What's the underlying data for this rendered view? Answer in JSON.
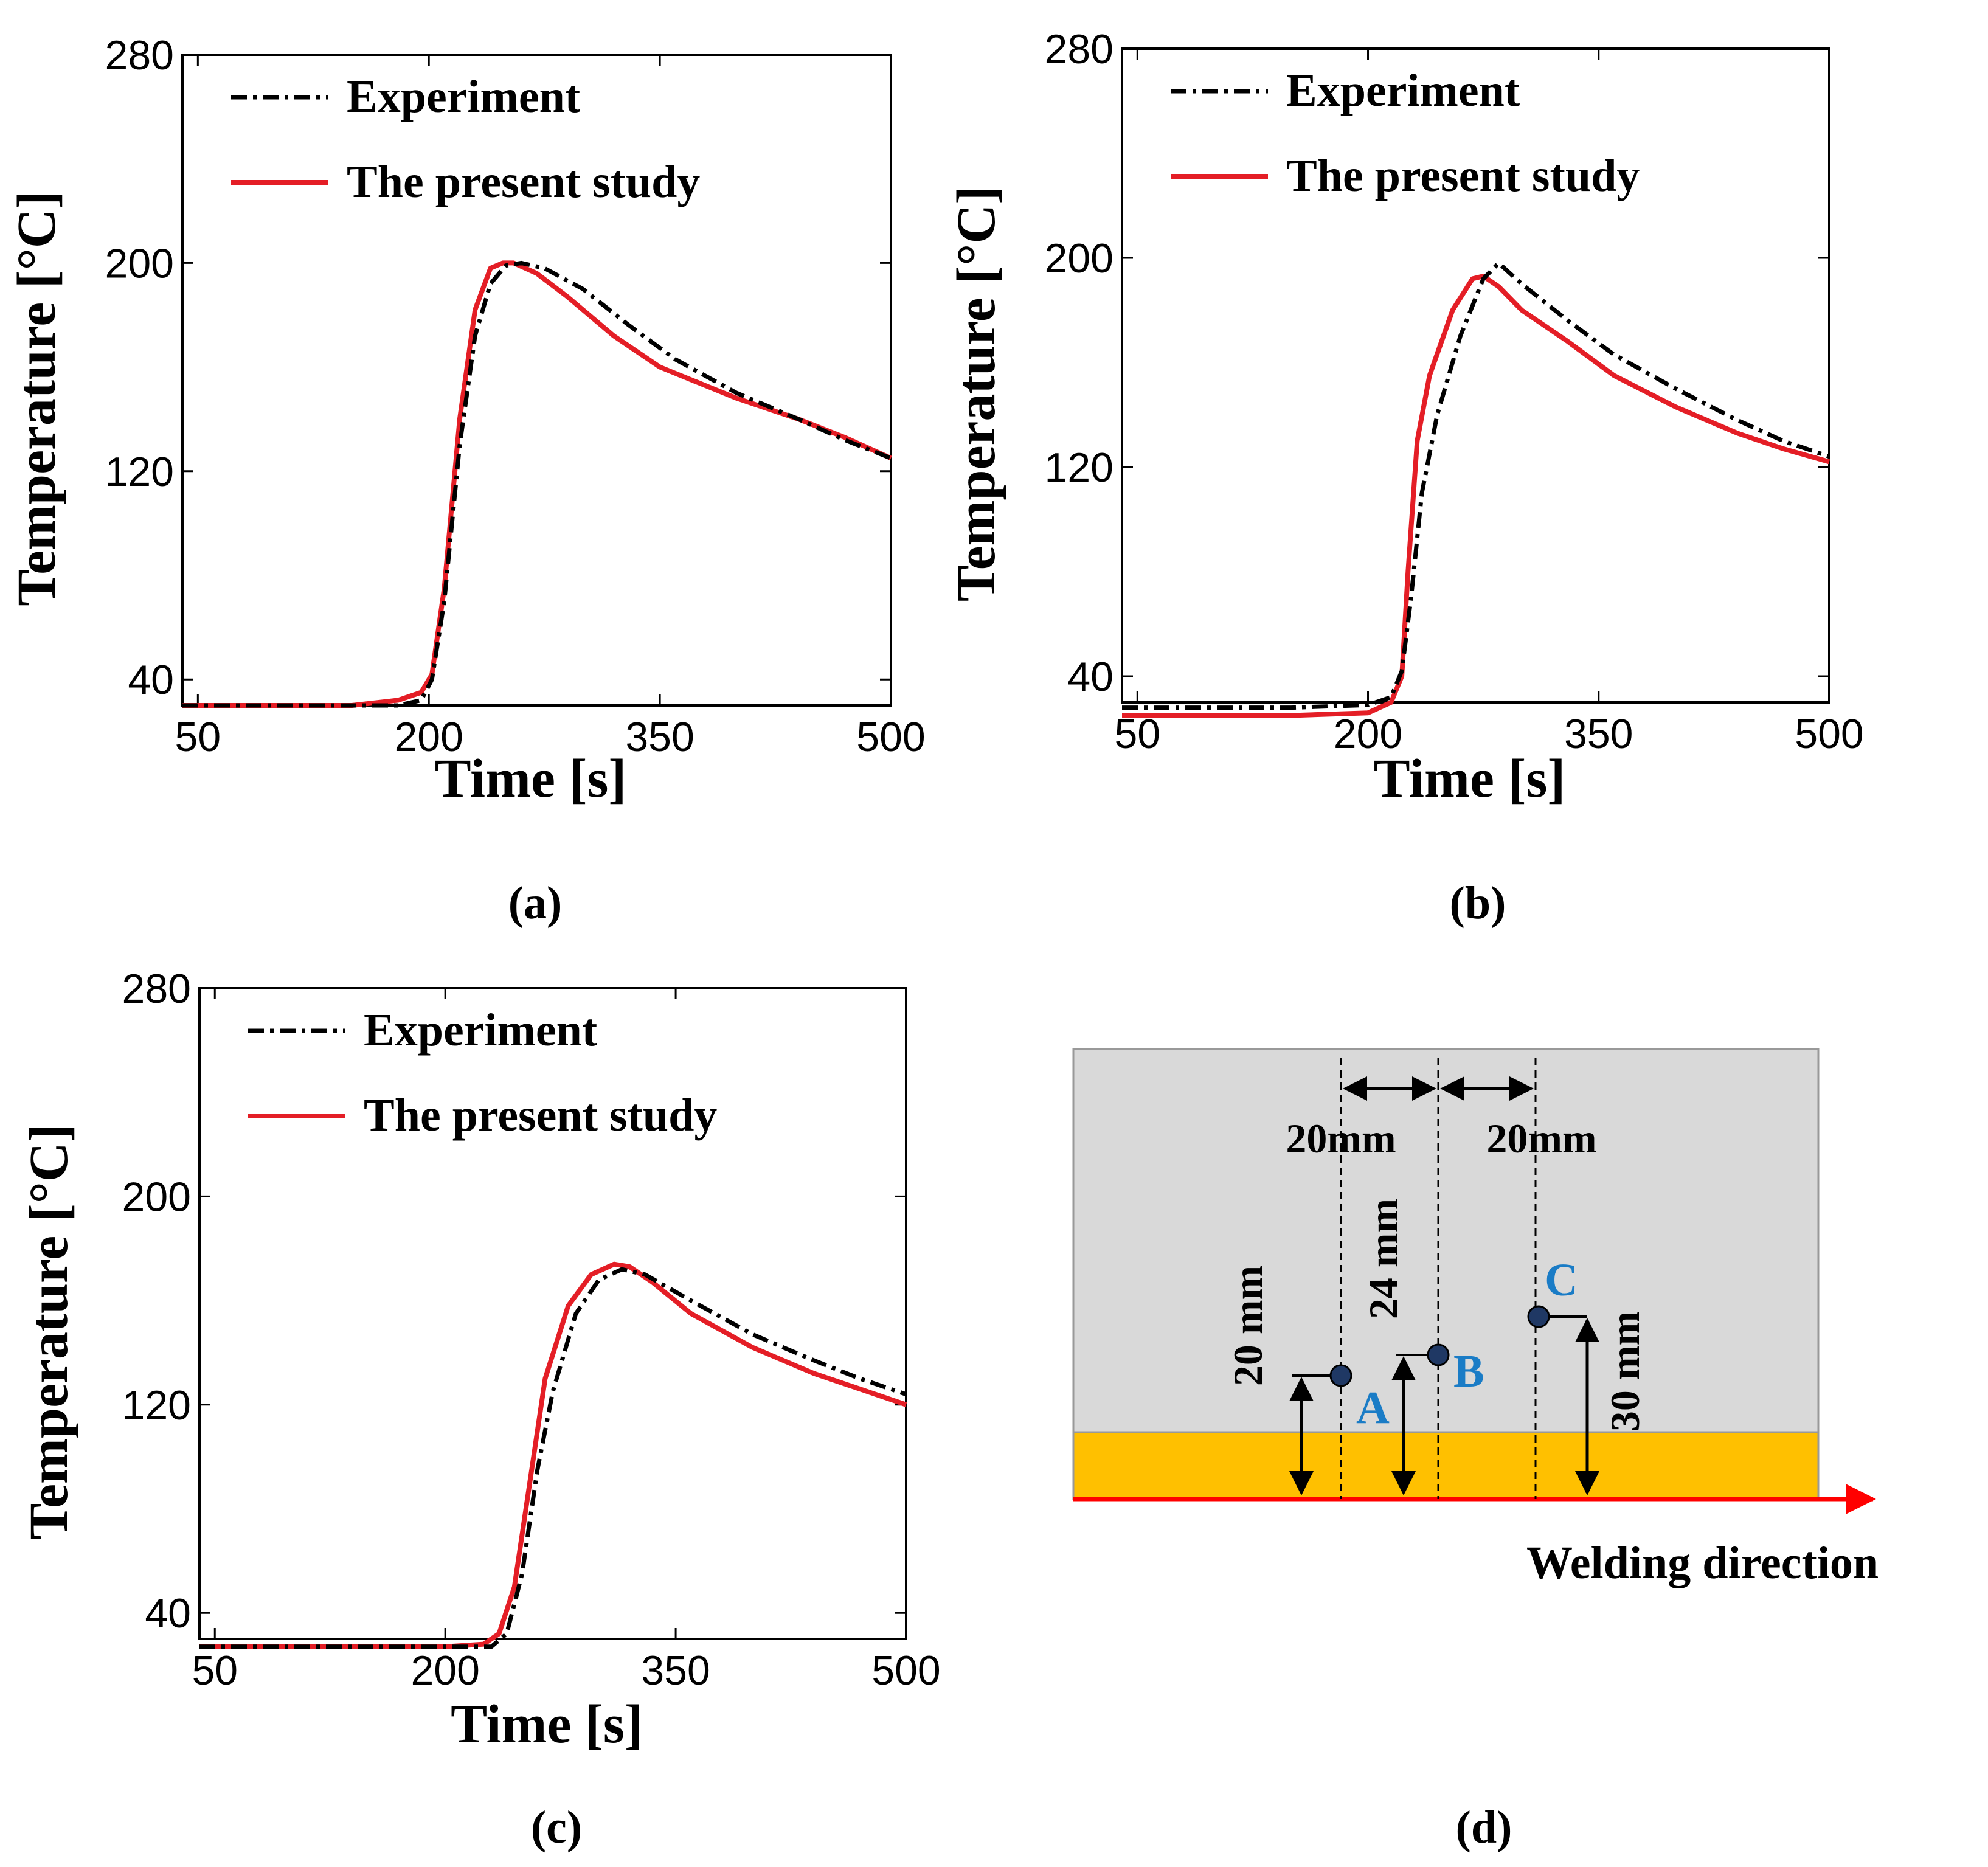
{
  "chart_data": [
    {
      "type": "line",
      "panel": "(a)",
      "xlabel": "Time [s]",
      "ylabel": "Temperature [°C]",
      "xlim": [
        40,
        500
      ],
      "ylim": [
        30,
        280
      ],
      "xticks": [
        50,
        200,
        350,
        500
      ],
      "yticks": [
        40,
        120,
        200,
        280
      ],
      "legend": [
        "Experiment",
        "The present study"
      ],
      "series": [
        {
          "name": "Experiment",
          "style": "dash-dot",
          "color": "#000000",
          "x": [
            40,
            100,
            150,
            180,
            195,
            202,
            210,
            220,
            230,
            240,
            250,
            260,
            275,
            300,
            330,
            360,
            400,
            440,
            470,
            500
          ],
          "y": [
            30,
            30,
            30,
            30,
            32,
            40,
            70,
            130,
            172,
            192,
            199,
            200,
            198,
            190,
            176,
            163,
            150,
            140,
            132,
            125
          ]
        },
        {
          "name": "The present study",
          "style": "solid",
          "color": "#e41e26",
          "x": [
            40,
            100,
            150,
            180,
            195,
            202,
            210,
            220,
            230,
            240,
            248,
            255,
            270,
            290,
            320,
            350,
            400,
            440,
            470,
            500
          ],
          "y": [
            30,
            30,
            30,
            32,
            35,
            42,
            75,
            140,
            182,
            198,
            200,
            200,
            196,
            187,
            172,
            160,
            148,
            140,
            133,
            125
          ]
        }
      ]
    },
    {
      "type": "line",
      "panel": "(b)",
      "xlabel": "Time [s]",
      "ylabel": "Temperature [°C]",
      "xlim": [
        40,
        500
      ],
      "ylim": [
        30,
        280
      ],
      "xticks": [
        50,
        200,
        350,
        500
      ],
      "yticks": [
        40,
        120,
        200,
        280
      ],
      "legend": [
        "Experiment",
        "The present study"
      ],
      "series": [
        {
          "name": "Experiment",
          "style": "dash-dot",
          "color": "#000000",
          "x": [
            40,
            100,
            150,
            200,
            215,
            222,
            228,
            235,
            245,
            260,
            275,
            285,
            300,
            330,
            360,
            400,
            440,
            470,
            500
          ],
          "y": [
            28,
            28,
            28,
            29,
            32,
            42,
            70,
            110,
            140,
            170,
            192,
            198,
            190,
            176,
            163,
            150,
            138,
            130,
            124
          ]
        },
        {
          "name": "The present study",
          "style": "solid",
          "color": "#e41e26",
          "x": [
            40,
            100,
            150,
            200,
            215,
            222,
            226,
            232,
            240,
            255,
            268,
            275,
            285,
            300,
            330,
            360,
            400,
            440,
            470,
            500
          ],
          "y": [
            25,
            25,
            25,
            26,
            30,
            40,
            80,
            130,
            155,
            180,
            192,
            193,
            189,
            180,
            168,
            155,
            143,
            133,
            127,
            122
          ]
        }
      ]
    },
    {
      "type": "line",
      "panel": "(c)",
      "xlabel": "Time [s]",
      "ylabel": "Temperature [°C]",
      "xlim": [
        40,
        500
      ],
      "ylim": [
        30,
        280
      ],
      "xticks": [
        50,
        200,
        350,
        500
      ],
      "yticks": [
        40,
        120,
        200,
        280
      ],
      "legend": [
        "Experiment",
        "The present study"
      ],
      "series": [
        {
          "name": "Experiment",
          "style": "dash-dot",
          "color": "#000000",
          "x": [
            40,
            100,
            150,
            200,
            230,
            240,
            250,
            260,
            270,
            285,
            300,
            315,
            330,
            360,
            400,
            440,
            470,
            500
          ],
          "y": [
            27,
            27,
            27,
            27,
            27,
            32,
            55,
            95,
            125,
            155,
            168,
            172,
            170,
            160,
            147,
            137,
            130,
            124
          ]
        },
        {
          "name": "The present study",
          "style": "solid",
          "color": "#e41e26",
          "x": [
            40,
            100,
            150,
            200,
            225,
            235,
            245,
            255,
            265,
            280,
            295,
            310,
            320,
            335,
            360,
            400,
            440,
            470,
            500
          ],
          "y": [
            27,
            27,
            27,
            27,
            28,
            32,
            50,
            90,
            130,
            158,
            170,
            174,
            173,
            167,
            155,
            142,
            132,
            126,
            120
          ]
        }
      ]
    }
  ],
  "captions": [
    "(a)",
    "(b)",
    "(c)",
    "(d)"
  ],
  "diagram": {
    "spacing_labels": [
      "20mm",
      "20mm"
    ],
    "height_labels": [
      "20 mm",
      "24 mm",
      "30 mm"
    ],
    "points": [
      "A",
      "B",
      "C"
    ],
    "direction_label": "Welding direction",
    "colors": {
      "plate": "#d9d9d9",
      "weld": "#ffc000",
      "arrow": "#ff0000",
      "point": "#1f3864",
      "label": "#1a7cc6"
    }
  }
}
